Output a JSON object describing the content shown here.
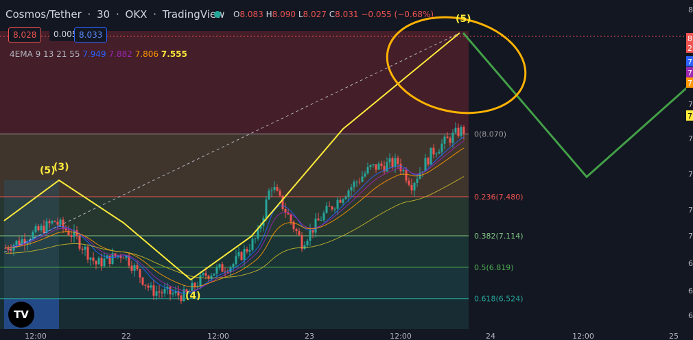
{
  "header": {
    "symbol": "Cosmos/Tether",
    "interval": "30",
    "exchange": "OKX",
    "platform": "TradingView",
    "sep": "·",
    "ohlc": {
      "o_label": "O",
      "o": "8.083",
      "h_label": "H",
      "h": "8.090",
      "l_label": "L",
      "l": "8.027",
      "c_label": "C",
      "c": "8.031",
      "change": "−0.055 (−0.68%)"
    }
  },
  "trade": {
    "sell": "8.028",
    "spread": "0.005",
    "buy": "8.033"
  },
  "indicator": {
    "label": "4EMA 9 13 21 55",
    "values": [
      "7.949",
      "7.882",
      "7.806",
      "7.555"
    ],
    "colors": [
      "#2962ff",
      "#9c27b0",
      "#ff9800",
      "#ffeb3b"
    ]
  },
  "logo_text": "TV",
  "chart_data": {
    "type": "candlestick",
    "symbol": "Cosmos/Tether",
    "x_ticks": [
      "12:00",
      "22",
      "12:00",
      "23",
      "12:00",
      "24",
      "12:00",
      "25"
    ],
    "y_axis_side": "right",
    "fib_levels": [
      {
        "ratio": "0",
        "value": "8.070",
        "label": "0(8.070)",
        "color": "#9e9e9e"
      },
      {
        "ratio": "0.236",
        "value": "7.480",
        "label": "0.236(7.480)",
        "color": "#ef5350"
      },
      {
        "ratio": "0.382",
        "value": "7.114",
        "label": "0.382(7.114)",
        "color": "#81c784"
      },
      {
        "ratio": "0.5",
        "value": "6.819",
        "label": "0.5(6.819)",
        "color": "#4caf50"
      },
      {
        "ratio": "0.618",
        "value": "6.524",
        "label": "0.618(6.524)",
        "color": "#26a69a"
      }
    ],
    "wave_labels": [
      "(5)",
      "(3)",
      "(4)",
      "(5)"
    ],
    "right_axis_labels": [
      "8",
      "7",
      "7",
      "7",
      "7",
      "7",
      "6",
      "6",
      "6",
      "6"
    ],
    "price_tags": [
      {
        "text": "8",
        "color": "#ef5350"
      },
      {
        "text": "2",
        "color": "#ef5350"
      },
      {
        "text": "7",
        "color": "#2962ff"
      },
      {
        "text": "7",
        "color": "#9c27b0"
      },
      {
        "text": "7",
        "color": "#ff9800"
      },
      {
        "text": "7",
        "color": "#ffeb3b"
      }
    ]
  }
}
